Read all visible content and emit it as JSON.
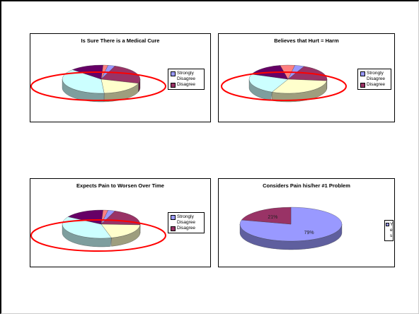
{
  "chart_data": [
    {
      "type": "pie",
      "title": "Is Sure There is a Medical Cure",
      "categories": [
        "Strongly Disagree",
        "Disagree",
        "",
        "",
        "",
        ""
      ],
      "values": [
        3,
        24,
        19,
        38,
        14,
        2
      ],
      "colors": [
        "#9999ff",
        "#993366",
        "#ffffcc",
        "#ccffff",
        "#660066",
        "#ff8080"
      ],
      "legend": [
        "Strongly Disagree",
        "Disagree"
      ],
      "legend_position": "right",
      "annotation": "red ellipse highlighting lower-left portion"
    },
    {
      "type": "pie",
      "title": "Believes that Hurt = Harm",
      "categories": [
        "Strongly Disagree",
        "Disagree",
        "",
        "",
        "",
        ""
      ],
      "values": [
        4,
        20,
        30,
        24,
        16,
        6
      ],
      "colors": [
        "#9999ff",
        "#993366",
        "#ffffcc",
        "#ccffff",
        "#660066",
        "#ff8080"
      ],
      "legend": [
        "Strongly Disagree",
        "Disagree"
      ],
      "legend_position": "right",
      "annotation": "red ellipse highlighting lower-left portion"
    },
    {
      "type": "pie",
      "title": "Expects Pain to Worsen Over Time",
      "categories": [
        "Strongly Disagree",
        "Disagree",
        "",
        "",
        "",
        ""
      ],
      "values": [
        3,
        20,
        20,
        38,
        17,
        2
      ],
      "colors": [
        "#9999ff",
        "#993366",
        "#ffffcc",
        "#ccffff",
        "#660066",
        "#ff8080"
      ],
      "legend": [
        "Strongly Disagree",
        "Disagree"
      ],
      "legend_position": "right",
      "annotation": "red ellipse highlighting lower-left portion"
    },
    {
      "type": "pie",
      "title": "Considers Pain his/her #1 Problem",
      "categories": [
        "Yes",
        ""
      ],
      "values": [
        79,
        21
      ],
      "data_labels": [
        "79%",
        "21%"
      ],
      "colors": [
        "#9999ff",
        "#993366"
      ],
      "legend": [
        "Ye s"
      ],
      "legend_position": "right"
    }
  ]
}
